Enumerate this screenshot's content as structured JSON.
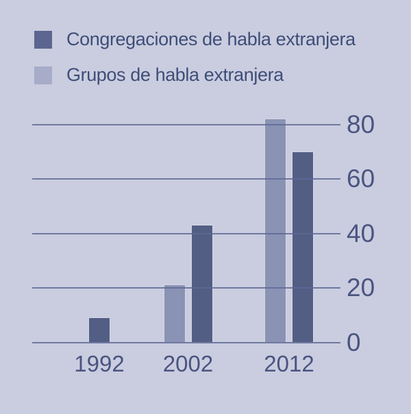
{
  "background_color": "#cacddf",
  "legend": {
    "items": [
      {
        "label": "Congregaciones de habla extranjera",
        "swatch_color": "#5b6590"
      },
      {
        "label": "Grupos de habla extranjera",
        "swatch_color": "#a7acc8"
      }
    ]
  },
  "chart_data": {
    "type": "bar",
    "categories": [
      "1992",
      "2002",
      "2012"
    ],
    "series": [
      {
        "name": "Grupos de habla extranjera",
        "key": "grupos",
        "color": "#8a93b4",
        "values": [
          null,
          21,
          82
        ]
      },
      {
        "name": "Congregaciones de habla extranjera",
        "key": "congregaciones",
        "color": "#535e84",
        "values": [
          9,
          43,
          70
        ]
      }
    ],
    "title": "",
    "xlabel": "",
    "ylabel": "",
    "yticks": [
      0,
      20,
      40,
      60,
      80
    ],
    "ylim": [
      0,
      80
    ],
    "grid": true,
    "gridlines_over_bars": true,
    "ytick_side": "right",
    "legend_position": "top-left",
    "axis_text_color": "#4a5480",
    "gridline_color": "#5f6894"
  }
}
